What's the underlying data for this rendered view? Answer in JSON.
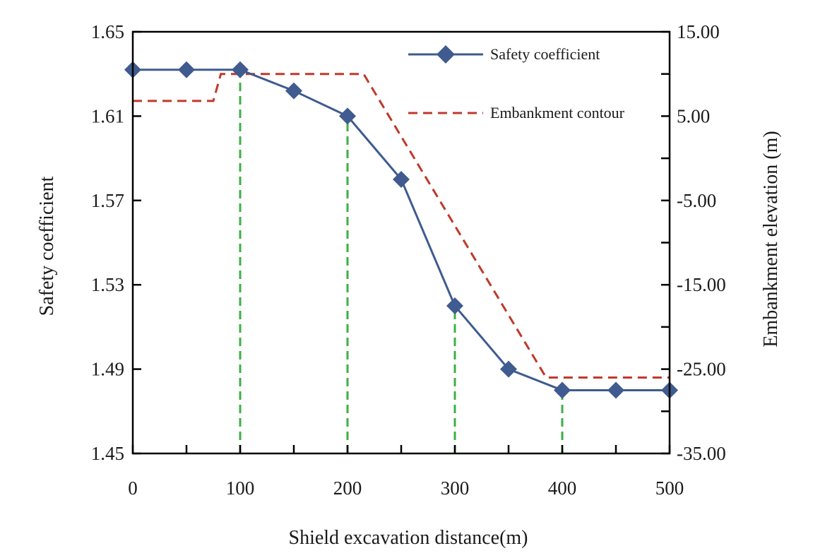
{
  "chart_data": {
    "type": "line",
    "title": "",
    "xlabel": "Shield excavation distance(m)",
    "ylabel_left": "Safety coefficient",
    "ylabel_right": "Embankment elevation (m)",
    "xlim": [
      0,
      500
    ],
    "ylim_left": [
      1.45,
      1.65
    ],
    "ylim_right": [
      -35,
      15
    ],
    "x_ticks": [
      "0",
      "100",
      "200",
      "300",
      "400",
      "500"
    ],
    "y_left_ticks": [
      "1.45",
      "1.49",
      "1.53",
      "1.57",
      "1.61",
      "1.65"
    ],
    "y_right_ticks": [
      "-35.00",
      "-25.00",
      "-15.00",
      "-5.00",
      "5.00",
      "15.00"
    ],
    "series": [
      {
        "name": "Safety coefficient",
        "axis": "left",
        "style": "solid-diamond",
        "color": "#3f5b8f",
        "x": [
          0,
          50,
          100,
          150,
          200,
          250,
          300,
          350,
          400,
          450,
          500
        ],
        "values": [
          1.632,
          1.632,
          1.632,
          1.622,
          1.61,
          1.58,
          1.52,
          1.49,
          1.48,
          1.48,
          1.48
        ]
      },
      {
        "name": "Embankment contour",
        "axis": "right",
        "style": "dashed",
        "color": "#c0392b",
        "x": [
          0,
          75,
          82,
          215,
          385,
          500
        ],
        "values": [
          6.8,
          6.8,
          10.0,
          10.0,
          -26.0,
          -26.0
        ]
      }
    ],
    "vertical_markers": {
      "color": "#3cb043",
      "style": "dashed",
      "x": [
        100,
        200,
        300,
        400
      ]
    },
    "legend": {
      "position": "top-right"
    }
  }
}
